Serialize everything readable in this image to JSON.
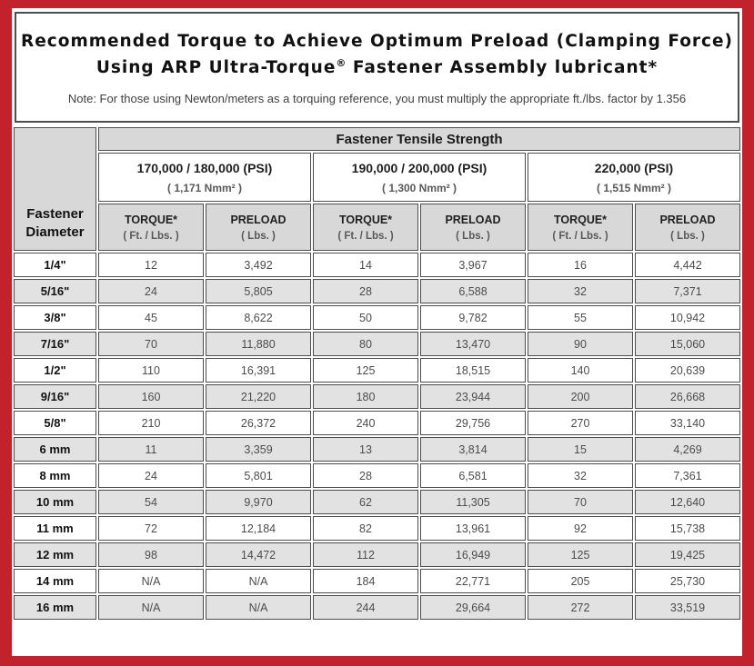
{
  "colors": {
    "frame_red": "#C2222B",
    "border_dark": "#4D4D4F",
    "header_gray": "#D8D8D8",
    "row_alt_gray": "#E2E2E2"
  },
  "title": {
    "line1": "Recommended Torque to Achieve Optimum Preload (Clamping Force)",
    "line2_pre": "Using ARP Ultra-Torque",
    "line2_sup": "®",
    "line2_post": " Fastener Assembly lubricant*",
    "note": "Note: For those using Newton/meters as a torquing reference, you must multiply the appropriate ft./lbs. factor by 1.356"
  },
  "table": {
    "corner_header": "Fastener Diameter",
    "main_header": "Fastener Tensile Strength",
    "strength_groups": [
      {
        "psi": "170,000 / 180,000 (PSI)",
        "nmm": "( 1,171 Nmm² )"
      },
      {
        "psi": "190,000 / 200,000 (PSI)",
        "nmm": "( 1,300 Nmm² )"
      },
      {
        "psi": "220,000 (PSI)",
        "nmm": "( 1,515 Nmm² )"
      }
    ],
    "sub_headers": {
      "torque_label": "TORQUE*",
      "torque_unit": "( Ft. / Lbs. )",
      "preload_label": "PRELOAD",
      "preload_unit": "( Lbs. )"
    },
    "rows": [
      {
        "diameter": "1/4\"",
        "values": [
          "12",
          "3,492",
          "14",
          "3,967",
          "16",
          "4,442"
        ]
      },
      {
        "diameter": "5/16\"",
        "values": [
          "24",
          "5,805",
          "28",
          "6,588",
          "32",
          "7,371"
        ]
      },
      {
        "diameter": "3/8\"",
        "values": [
          "45",
          "8,622",
          "50",
          "9,782",
          "55",
          "10,942"
        ]
      },
      {
        "diameter": "7/16\"",
        "values": [
          "70",
          "11,880",
          "80",
          "13,470",
          "90",
          "15,060"
        ]
      },
      {
        "diameter": "1/2\"",
        "values": [
          "110",
          "16,391",
          "125",
          "18,515",
          "140",
          "20,639"
        ]
      },
      {
        "diameter": "9/16\"",
        "values": [
          "160",
          "21,220",
          "180",
          "23,944",
          "200",
          "26,668"
        ]
      },
      {
        "diameter": "5/8\"",
        "values": [
          "210",
          "26,372",
          "240",
          "29,756",
          "270",
          "33,140"
        ]
      },
      {
        "diameter": "6 mm",
        "values": [
          "11",
          "3,359",
          "13",
          "3,814",
          "15",
          "4,269"
        ]
      },
      {
        "diameter": "8 mm",
        "values": [
          "24",
          "5,801",
          "28",
          "6,581",
          "32",
          "7,361"
        ]
      },
      {
        "diameter": "10 mm",
        "values": [
          "54",
          "9,970",
          "62",
          "11,305",
          "70",
          "12,640"
        ]
      },
      {
        "diameter": "11 mm",
        "values": [
          "72",
          "12,184",
          "82",
          "13,961",
          "92",
          "15,738"
        ]
      },
      {
        "diameter": "12 mm",
        "values": [
          "98",
          "14,472",
          "112",
          "16,949",
          "125",
          "19,425"
        ]
      },
      {
        "diameter": "14 mm",
        "values": [
          "N/A",
          "N/A",
          "184",
          "22,771",
          "205",
          "25,730"
        ]
      },
      {
        "diameter": "16 mm",
        "values": [
          "N/A",
          "N/A",
          "244",
          "29,664",
          "272",
          "33,519"
        ]
      }
    ]
  }
}
